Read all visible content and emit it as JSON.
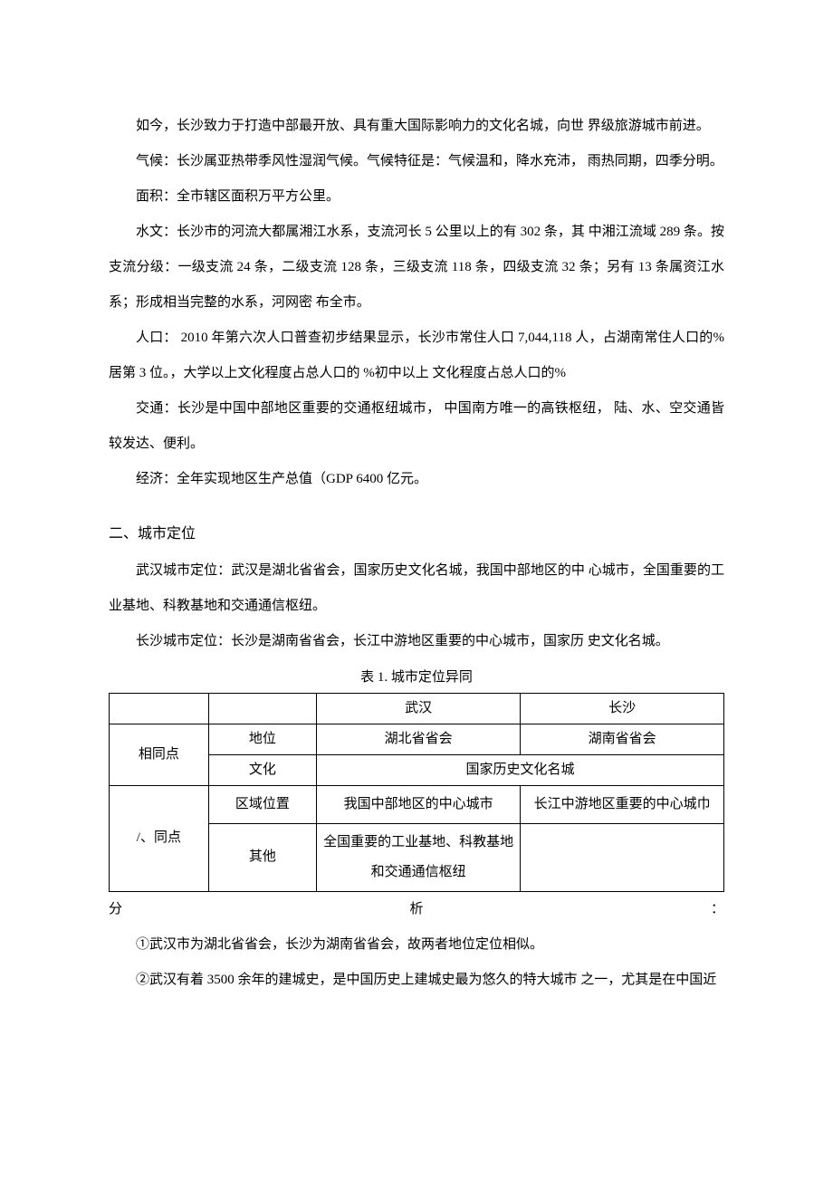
{
  "paragraphs": {
    "p1": "如今，长沙致力于打造中部最开放、具有重大国际影响力的文化名城，向世 界级旅游城市前进。",
    "p2": "气候：长沙属亚热带季风性湿润气候。气候特征是：气候温和，降水充沛， 雨热同期，四季分明。",
    "p3": "面积：全市辖区面积万平方公里。",
    "p4": "水文：长沙市的河流大都属湘江水系，支流河长 5 公里以上的有 302 条，其 中湘江流域 289 条。按支流分级：一级支流 24 条，二级支流 128 条，三级支流 118 条，四级支流 32 条；另有 13 条属资江水系；形成相当完整的水系，河网密 布全市。",
    "p5": "人口： 2010 年第六次人口普查初步结果显示，长沙市常住人口 7,044,118 人，占湖南常住人口的%居第 3 位。，大学以上文化程度占总人口的 %初中以上 文化程度占总人口的%",
    "p6": "交通：长沙是中国中部地区重要的交通枢纽城市， 中国南方唯一的高铁枢纽， 陆、水、空交通皆较发达、便利。",
    "p7": "经济：全年实现地区生产总值（GDP 6400 亿元。"
  },
  "section2": {
    "heading": "二、城市定位",
    "p1": "武汉城市定位：武汉是湖北省省会，国家历史文化名城，我国中部地区的中 心城市，全国重要的工业基地、科教基地和交通通信枢纽。",
    "p2": "长沙城市定位：长沙是湖南省省会，长江中游地区重要的中心城市，国家历 史文化名城。"
  },
  "table": {
    "caption": "表 1. 城市定位异同",
    "header": {
      "blank": "",
      "wuhan": "武汉",
      "changsha": "长沙"
    },
    "rows": {
      "same_label": "相同点",
      "same_r1": {
        "key": "地位",
        "wuhan": "湖北省省会",
        "changsha": "湖南省省会"
      },
      "same_r2": {
        "key": "文化",
        "merged": "国家历史文化名城"
      },
      "diff_label": "/、同点",
      "diff_r1": {
        "key": "区域位置",
        "wuhan": "我国中部地区的中心城市",
        "changsha": "长江中游地区重要的中心城巾"
      },
      "diff_r2": {
        "key": "其他",
        "wuhan": "全国重要的工业基地、科教基地和交通通信枢纽",
        "changsha": ""
      }
    }
  },
  "analysis": {
    "left": "分",
    "mid": "析",
    "right": "：",
    "a1": "①武汉市为湖北省省会，长沙为湖南省省会，故两者地位定位相似。",
    "a2": "②武汉有着 3500 余年的建城史，是中国历史上建城史最为悠久的特大城市 之一，尤其是在中国近"
  }
}
